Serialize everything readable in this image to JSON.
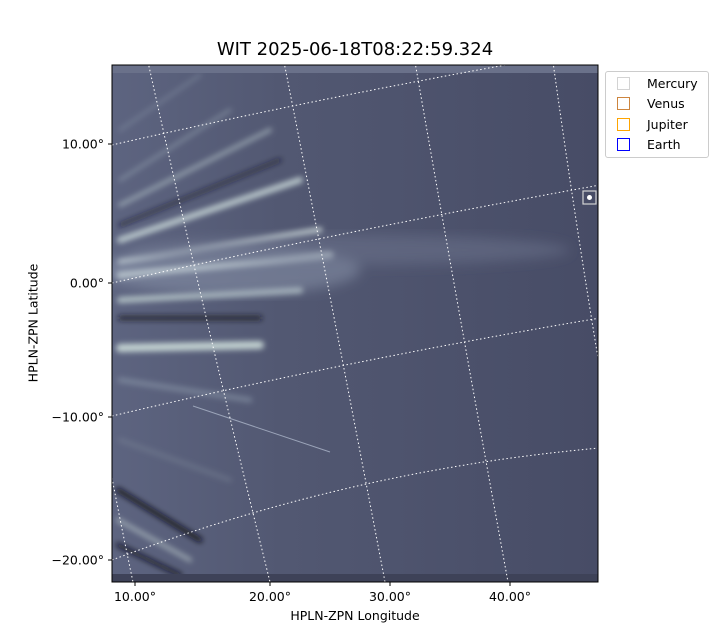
{
  "chart_data": {
    "type": "image",
    "title": "WIT 2025-06-18T08:22:59.324",
    "xlabel": "HPLN-ZPN Longitude",
    "ylabel": "HPLN-ZPN Latitude",
    "x_ticks": [
      "10.00°",
      "20.00°",
      "30.00°",
      "40.00°"
    ],
    "y_ticks": [
      "10.00°",
      "0.00°",
      "−10.00°",
      "−20.00°"
    ],
    "colormap": "bone",
    "grid": "dotted white coordinate grid",
    "legend": {
      "placement": "outside-top-right",
      "entries": [
        {
          "name": "Mercury",
          "color": "#d3d3d3"
        },
        {
          "name": "Venus",
          "color": "#cd853f"
        },
        {
          "name": "Jupiter",
          "color": "#ffa500"
        },
        {
          "name": "Earth",
          "color": "#0000ff"
        }
      ]
    }
  }
}
